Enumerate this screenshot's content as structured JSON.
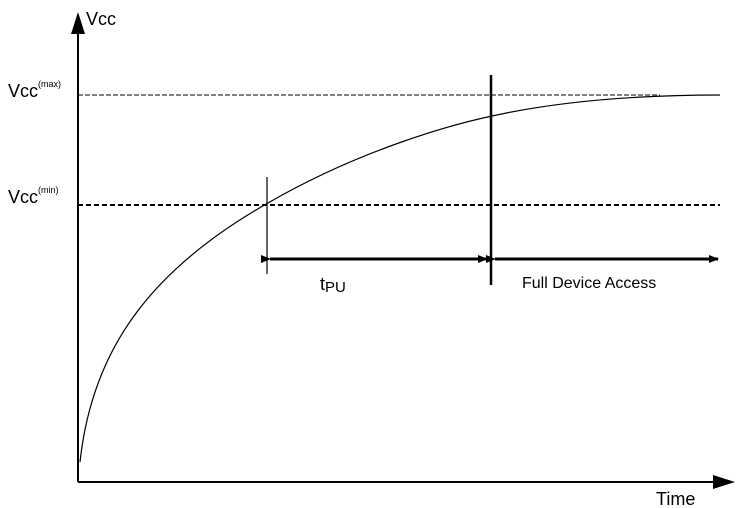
{
  "diagram": {
    "y_axis_label": "Vcc",
    "x_axis_label": "Time",
    "vcc_max": {
      "base": "Vcc",
      "sup": "(max)"
    },
    "vcc_min": {
      "base": "Vcc",
      "sup": "(min)"
    },
    "tpu": {
      "base": "t",
      "sub": "PU"
    },
    "full_access_label": "Full Device Access"
  }
}
